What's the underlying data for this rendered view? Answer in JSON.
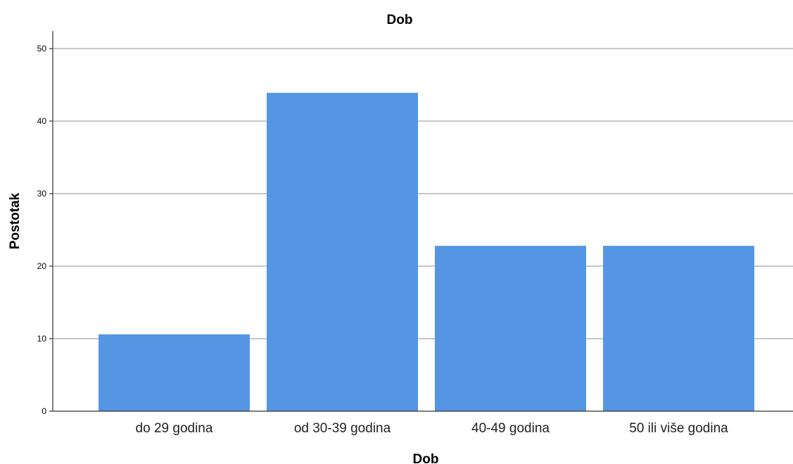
{
  "chart_data": {
    "type": "bar",
    "title": "Dob",
    "xlabel": "Dob",
    "ylabel": "Postotak",
    "categories": [
      "do 29 godina",
      "od 30-39 godina",
      "40-49 godina",
      "50 ili više godina"
    ],
    "values": [
      10.6,
      43.9,
      22.8,
      22.8
    ],
    "ylim": [
      0,
      52.5
    ],
    "yticks": [
      0,
      10,
      20,
      30,
      40,
      50
    ],
    "grid": true,
    "bar_color": "#5596e4",
    "grid_color": "#c8c8c8"
  }
}
